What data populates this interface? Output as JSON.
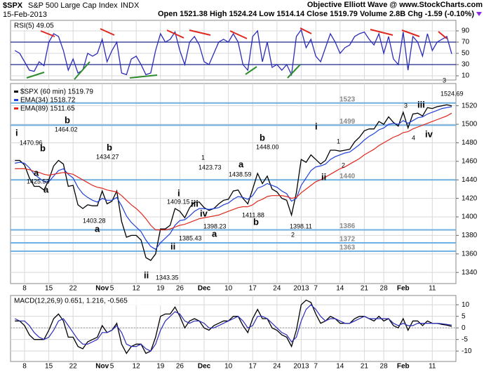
{
  "header": {
    "symbol": "$SPX",
    "name": "S&P 500 Large Cap Index",
    "exchange": "INDX",
    "date": "15-Feb-2013",
    "credit": "Objective Elliott Wave @ www.StockCharts.com",
    "quote": "Open 1521.38 High 1524.24 Low 1514.14 Close 1519.79 Volume 2.8B Chg -1.59 (-0.10%)"
  },
  "chart_data": [
    {
      "type": "line",
      "title": "RSI(5) 49.05",
      "ylim": [
        2.5,
        108.75
      ],
      "yticks": [
        10,
        30,
        50,
        70,
        90
      ],
      "bands": [
        70,
        30
      ],
      "series": [
        {
          "color": "#2b2bb8",
          "values": [
            55,
            50,
            35,
            20,
            18,
            35,
            28,
            70,
            85,
            80,
            55,
            20,
            40,
            15,
            20,
            50,
            45,
            50,
            75,
            35,
            55,
            70,
            15,
            12,
            40,
            45,
            30,
            12,
            15,
            55,
            85,
            70,
            75,
            88,
            55,
            30,
            70,
            80,
            65,
            35,
            30,
            50,
            70,
            75,
            70,
            85,
            70,
            30,
            20,
            80,
            90,
            35,
            70,
            25,
            30,
            20,
            30,
            12,
            80,
            92,
            60,
            75,
            45,
            35,
            60,
            85,
            70,
            50,
            60,
            65,
            80,
            85,
            88,
            75,
            65,
            85,
            50,
            80,
            40,
            30,
            88,
            20,
            80,
            70,
            45,
            85,
            55,
            70,
            75,
            80,
            49.05
          ]
        }
      ]
    },
    {
      "type": "line",
      "categories": [
        null,
        null,
        "8",
        null,
        null,
        null,
        null,
        "15",
        null,
        null,
        null,
        null,
        "22",
        null,
        null,
        null,
        null,
        null,
        "Nov",
        null,
        "5",
        null,
        null,
        null,
        null,
        "12",
        null,
        null,
        null,
        null,
        "19",
        null,
        null,
        null,
        "26",
        null,
        null,
        null,
        null,
        "Dec",
        null,
        null,
        null,
        null,
        "10",
        null,
        null,
        null,
        null,
        "17",
        null,
        null,
        null,
        null,
        "24",
        null,
        null,
        null,
        null,
        "2013",
        null,
        null,
        "7",
        null,
        null,
        null,
        null,
        "14",
        null,
        null,
        null,
        null,
        "21",
        null,
        null,
        null,
        "28",
        null,
        null,
        null,
        "Feb",
        null,
        null,
        null,
        null,
        null,
        "11",
        null,
        null,
        null,
        null
      ],
      "ylim": [
        1328,
        1544
      ],
      "yticks": [
        1340,
        1360,
        1380,
        1400,
        1420,
        1440,
        1460,
        1480,
        1500,
        1520
      ],
      "grid": true,
      "levels": [
        1523,
        1499,
        1440,
        1386,
        1372,
        1363
      ],
      "series": [
        {
          "name": "$SPX (60 min) 1519.79",
          "color": "#000000",
          "values": [
            1461,
            1461,
            1456,
            1442,
            1433,
            1433,
            1429,
            1440,
            1455,
            1461,
            1457,
            1433,
            1434,
            1413,
            1409,
            1413,
            1412,
            1412,
            1428,
            1414,
            1417,
            1428,
            1395,
            1378,
            1380,
            1380,
            1375,
            1356,
            1353,
            1360,
            1387,
            1387,
            1391,
            1409,
            1406,
            1399,
            1410,
            1416,
            1416,
            1410,
            1407,
            1409,
            1414,
            1418,
            1419,
            1428,
            1429,
            1420,
            1414,
            1430,
            1447,
            1436,
            1444,
            1430,
            1427,
            1420,
            1418,
            1402,
            1426,
            1462,
            1459,
            1467,
            1462,
            1457,
            1461,
            1472,
            1472,
            1471,
            1472,
            1473,
            1481,
            1486,
            1493,
            1495,
            1495,
            1503,
            1500,
            1508,
            1502,
            1498,
            1513,
            1496,
            1511,
            1512,
            1509,
            1518,
            1517,
            1519,
            1520,
            1521,
            1520
          ]
        },
        {
          "name": "EMA(34) 1518.72",
          "color": "#1f3fd6",
          "values": [
            1458,
            1459,
            1458,
            1453,
            1446,
            1442,
            1438,
            1438,
            1444,
            1450,
            1452,
            1446,
            1442,
            1432,
            1425,
            1421,
            1418,
            1416,
            1420,
            1418,
            1418,
            1421,
            1412,
            1401,
            1394,
            1389,
            1384,
            1375,
            1368,
            1365,
            1372,
            1377,
            1382,
            1391,
            1396,
            1397,
            1401,
            1406,
            1409,
            1409,
            1408,
            1409,
            1410,
            1413,
            1415,
            1419,
            1422,
            1421,
            1419,
            1423,
            1431,
            1433,
            1436,
            1434,
            1432,
            1428,
            1425,
            1417,
            1420,
            1434,
            1442,
            1450,
            1454,
            1455,
            1457,
            1462,
            1465,
            1467,
            1469,
            1470,
            1474,
            1478,
            1483,
            1487,
            1490,
            1494,
            1496,
            1500,
            1501,
            1500,
            1504,
            1501,
            1504,
            1507,
            1508,
            1511,
            1513,
            1515,
            1517,
            1518,
            1519
          ]
        },
        {
          "name": "EMA(89) 1511.65",
          "color": "#e0281e",
          "values": [
            1452,
            1452,
            1452,
            1451,
            1449,
            1448,
            1446,
            1445,
            1446,
            1447,
            1448,
            1447,
            1446,
            1443,
            1440,
            1437,
            1434,
            1432,
            1431,
            1429,
            1428,
            1427,
            1423,
            1418,
            1413,
            1409,
            1404,
            1398,
            1391,
            1386,
            1386,
            1386,
            1387,
            1389,
            1391,
            1392,
            1394,
            1396,
            1398,
            1399,
            1400,
            1401,
            1402,
            1404,
            1406,
            1408,
            1410,
            1411,
            1411,
            1413,
            1417,
            1419,
            1422,
            1423,
            1423,
            1423,
            1422,
            1420,
            1421,
            1426,
            1430,
            1434,
            1438,
            1440,
            1443,
            1446,
            1449,
            1452,
            1454,
            1457,
            1460,
            1463,
            1467,
            1470,
            1473,
            1477,
            1480,
            1483,
            1486,
            1488,
            1491,
            1492,
            1495,
            1497,
            1499,
            1501,
            1503,
            1505,
            1507,
            1509,
            1512
          ]
        }
      ],
      "annotations": [
        {
          "text": "i",
          "color": "#7a1670"
        },
        {
          "text": "1470.96",
          "color": "#000000"
        },
        {
          "text": "b",
          "color": "#1d6f6f"
        },
        {
          "text": "a",
          "color": "#1d6f6f"
        },
        {
          "text": "1425.53",
          "color": "#000000"
        },
        {
          "text": "a",
          "color": "#1c2a8a"
        },
        {
          "text": "b",
          "color": "#1c2a8a"
        },
        {
          "text": "1464.02",
          "color": "#000000"
        },
        {
          "text": "b",
          "color": "#1d6f6f"
        },
        {
          "text": "1434.27",
          "color": "#000000"
        },
        {
          "text": "1403.28",
          "color": "#000000"
        },
        {
          "text": "a",
          "color": "#1d6f6f"
        },
        {
          "text": "ii",
          "color": "#7a1670"
        },
        {
          "text": "1343.35",
          "color": "#000000"
        },
        {
          "text": "1385.43",
          "color": "#000000"
        },
        {
          "text": "ii",
          "color": "#1d6f6f"
        },
        {
          "text": "i",
          "color": "#2e8b2e"
        },
        {
          "text": "iii",
          "color": "#2e8b2e"
        },
        {
          "text": "1409.15",
          "color": "#000000"
        },
        {
          "text": "iv",
          "color": "#1d6f6f"
        },
        {
          "text": "1",
          "color": "#1c2a8a"
        },
        {
          "text": "1423.73",
          "color": "#000000"
        },
        {
          "text": "1398.23",
          "color": "#000000"
        },
        {
          "text": "a",
          "color": "#1d6f6f"
        },
        {
          "text": "a",
          "color": "#e06a10"
        },
        {
          "text": "1438.59",
          "color": "#000000"
        },
        {
          "text": "b",
          "color": "#1d6f6f"
        },
        {
          "text": "1448.00",
          "color": "#000000"
        },
        {
          "text": "1411.88",
          "color": "#000000"
        },
        {
          "text": "b",
          "color": "#e06a10"
        },
        {
          "text": "1398.11",
          "color": "#000000"
        },
        {
          "text": "2",
          "color": "#1c2a8a"
        },
        {
          "text": "i",
          "color": "#2e8b2e"
        },
        {
          "text": "1",
          "color": "#e06a10"
        },
        {
          "text": "2",
          "color": "#e06a10"
        },
        {
          "text": "ii",
          "color": "#2e8b2e"
        },
        {
          "text": "3",
          "color": "#e06a10"
        },
        {
          "text": "iii",
          "color": "#1d6f6f"
        },
        {
          "text": "4",
          "color": "#e06a10"
        },
        {
          "text": "iv",
          "color": "#1d6f6f"
        },
        {
          "text": "3",
          "color": "#2e8b2e"
        },
        {
          "text": "1524.69",
          "color": "#000000"
        }
      ]
    },
    {
      "type": "line",
      "title": "MACD(12,26,9) 0.651, 1.216, -0.565",
      "categories": [
        null,
        null,
        "8",
        null,
        null,
        null,
        null,
        "15",
        null,
        null,
        null,
        null,
        "22",
        null,
        null,
        null,
        null,
        null,
        "Nov",
        null,
        "5",
        null,
        null,
        null,
        null,
        "12",
        null,
        null,
        null,
        null,
        "19",
        null,
        null,
        null,
        "26",
        null,
        null,
        null,
        null,
        "Dec",
        null,
        null,
        null,
        null,
        "10",
        null,
        null,
        null,
        null,
        "17",
        null,
        null,
        null,
        null,
        "24",
        null,
        null,
        null,
        null,
        "2013",
        null,
        null,
        "7",
        null,
        null,
        null,
        null,
        "14",
        null,
        null,
        null,
        null,
        "21",
        null,
        null,
        null,
        "28",
        null,
        null,
        null,
        "Feb",
        null,
        null,
        null,
        null,
        null,
        "11",
        null,
        null,
        null,
        null
      ],
      "ylim": [
        -14.5,
        14
      ],
      "yticks": [
        -10,
        -5,
        0,
        5,
        10
      ],
      "series": [
        {
          "color": "#000000",
          "values": [
            3,
            3,
            1,
            -3,
            -5,
            -5,
            -5,
            -1,
            4,
            6,
            3,
            -4,
            -4,
            -8,
            -9,
            -6,
            -5,
            -4,
            1,
            -2,
            -1,
            2,
            -7,
            -11,
            -8,
            -7,
            -7,
            -11,
            -10,
            -4,
            5,
            6,
            6,
            9,
            5,
            0,
            3,
            4,
            3,
            0,
            -1,
            1,
            2,
            3,
            3,
            5,
            5,
            1,
            -2,
            4,
            8,
            4,
            4,
            0,
            -1,
            -3,
            -4,
            -8,
            -1,
            10,
            12,
            11,
            6,
            2,
            3,
            5,
            4,
            2,
            2,
            2,
            4,
            5,
            5,
            4,
            3,
            5,
            3,
            4,
            1,
            0,
            4,
            -1,
            3,
            3,
            1,
            3,
            2,
            2,
            1.5,
            1.2,
            0.651
          ]
        },
        {
          "color": "#2b2bb8",
          "values": [
            4,
            3,
            3,
            1,
            -2,
            -4,
            -5,
            -4,
            -1,
            3,
            4,
            1,
            -2,
            -5,
            -7,
            -7,
            -6,
            -5,
            -2,
            -2,
            -1,
            1,
            -2,
            -7,
            -8,
            -8,
            -7,
            -9,
            -10,
            -7,
            -1,
            3,
            5,
            7,
            6,
            3,
            2,
            3,
            3,
            2,
            0,
            0,
            1,
            2,
            3,
            4,
            5,
            3,
            0,
            1,
            5,
            5,
            4,
            2,
            0,
            -2,
            -3,
            -6,
            -4,
            3,
            8,
            10,
            8,
            5,
            3,
            4,
            4,
            3,
            2,
            2,
            3,
            4,
            5,
            4,
            4,
            4,
            4,
            4,
            2,
            1,
            2,
            1,
            1,
            2,
            2,
            2,
            2,
            2,
            1.8,
            1.5,
            1.216
          ]
        }
      ]
    }
  ]
}
